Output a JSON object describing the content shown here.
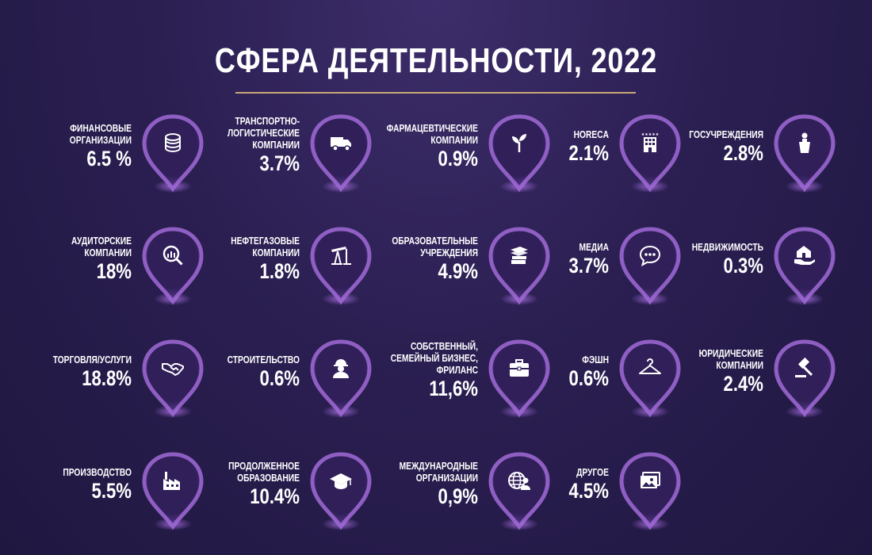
{
  "title": "СФЕРА ДЕЯТЕЛЬНОСТИ, 2022",
  "colors": {
    "pin_fill": "#301f59",
    "pin_glow": "#a06ad6",
    "divider": "#c9a978"
  },
  "items": [
    {
      "category": "ФИНАНСОВЫЕ\nОРГАНИЗАЦИИ",
      "value": "6.5 %",
      "icon": "coins-icon"
    },
    {
      "category": "ТРАНСПОРТНО-\nЛОГИСТИЧЕСКИЕ\nКОМПАНИИ",
      "value": "3.7%",
      "icon": "truck-icon"
    },
    {
      "category": "ФАРМАЦЕВТИЧЕСКИЕ\nКОМПАНИИ",
      "value": "0.9%",
      "icon": "sprout-icon"
    },
    {
      "category": "HORECA",
      "value": "2.1%",
      "icon": "hotel-icon"
    },
    {
      "category": "ГОСУЧРЕЖДЕНИЯ",
      "value": "2.8%",
      "icon": "podium-icon"
    },
    {
      "category": "АУДИТОРСКИЕ\nКОМПАНИИ",
      "value": "18%",
      "icon": "magnifier-chart-icon"
    },
    {
      "category": "НЕФТЕГАЗОВЫЕ\nКОМПАНИИ",
      "value": "1.8%",
      "icon": "oil-pump-icon"
    },
    {
      "category": "ОБРАЗОВАТЕЛЬНЫЕ\nУЧРЕЖДЕНИЯ",
      "value": "4.9%",
      "icon": "books-icon"
    },
    {
      "category": "МЕДИА",
      "value": "3.7%",
      "icon": "chat-icon"
    },
    {
      "category": "НЕДВИЖИМОСТЬ",
      "value": "0.3%",
      "icon": "house-hand-icon"
    },
    {
      "category": "ТОРГОВЛЯ/УСЛУГИ",
      "value": "18.8%",
      "icon": "handshake-icon"
    },
    {
      "category": "СТРОИТЕЛЬСТВО",
      "value": "0.6%",
      "icon": "worker-icon"
    },
    {
      "category": "СОБСТВЕННЫЙ,\nСЕМЕЙНЫЙ БИЗНЕС,\nФРИЛАНС",
      "value": "11,6%",
      "icon": "briefcase-icon"
    },
    {
      "category": "ФЭШН",
      "value": "0.6%",
      "icon": "hanger-icon"
    },
    {
      "category": "ЮРИДИЧЕСКИЕ\nКОМПАНИИ",
      "value": "2.4%",
      "icon": "gavel-icon"
    },
    {
      "category": "ПРОИЗВОДСТВО",
      "value": "5.5%",
      "icon": "factory-icon"
    },
    {
      "category": "ПРОДОЛЖЕННОЕ\nОБРАЗОВАНИЕ",
      "value": "10.4%",
      "icon": "graduation-cap-icon"
    },
    {
      "category": "МЕЖДУНАРОДНЫЕ\nОРГАНИЗАЦИИ",
      "value": "0,9%",
      "icon": "globe-person-icon"
    },
    {
      "category": "ДРУГОЕ",
      "value": "4.5%",
      "icon": "pictures-icon"
    }
  ]
}
